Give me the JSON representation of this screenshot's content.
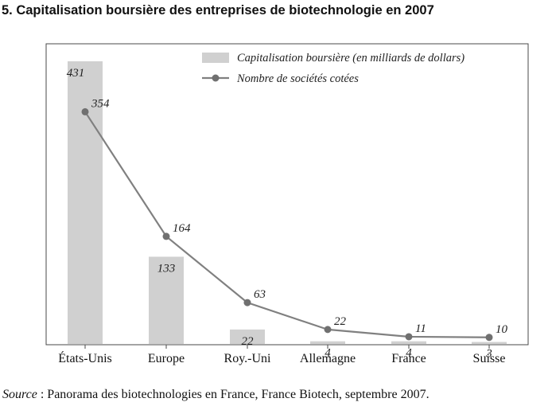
{
  "title": "5. Capitalisation boursière des entreprises de biotechnologie en 2007",
  "source": {
    "label": "Source",
    "text": " : Panorama des biotechnologies en France, France Biotech, septembre 2007."
  },
  "chart_data": {
    "type": "bar",
    "categories": [
      "États-Unis",
      "Europe",
      "Roy.-Uni",
      "Allemagne",
      "France",
      "Suisse"
    ],
    "series": [
      {
        "name": "Capitalisation boursière (en milliards de dollars)",
        "kind": "bar",
        "color": "#d0d0d0",
        "values": [
          431,
          133,
          22,
          4,
          4,
          3
        ]
      },
      {
        "name": "Nombre de sociétés cotées",
        "kind": "line",
        "color": "#808080",
        "values": [
          354,
          164,
          63,
          22,
          11,
          10
        ]
      }
    ],
    "bar_labels": [
      "431",
      "133",
      "22",
      "4",
      "4",
      "3"
    ],
    "line_labels": [
      "354",
      "164",
      "63",
      "22",
      "11",
      "10"
    ],
    "ylim": [
      0,
      431
    ],
    "grid": false,
    "legend": "top-right"
  }
}
